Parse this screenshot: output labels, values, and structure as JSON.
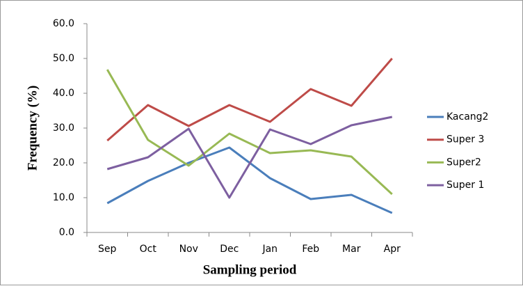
{
  "chart_data": {
    "type": "line",
    "xlabel": "Sampling period",
    "ylabel": "Frequency (%)",
    "categories": [
      "Sep",
      "Oct",
      "Nov",
      "Dec",
      "Jan",
      "Feb",
      "Mar",
      "Apr"
    ],
    "series": [
      {
        "name": "Kacang2",
        "color": "#4a7ebb",
        "values": [
          8.4,
          14.8,
          20,
          24.4,
          15.6,
          9.6,
          10.8,
          5.6
        ]
      },
      {
        "name": "Super 3",
        "color": "#be4b48",
        "values": [
          26.4,
          36.6,
          30.6,
          36.6,
          31.8,
          41.2,
          36.4,
          50
        ]
      },
      {
        "name": "Super2",
        "color": "#98b954",
        "values": [
          46.8,
          26.6,
          19.2,
          28.4,
          22.8,
          23.6,
          21.8,
          11
        ]
      },
      {
        "name": "Super 1",
        "color": "#7d5fa0",
        "values": [
          18.2,
          21.6,
          29.8,
          10,
          29.6,
          25.4,
          30.8,
          33.2
        ]
      }
    ],
    "ylim": [
      0,
      60
    ],
    "yticks": [
      {
        "value": 0,
        "label": "0.0"
      },
      {
        "value": 10,
        "label": "10.0"
      },
      {
        "value": 20,
        "label": "20.0"
      },
      {
        "value": 30,
        "label": "30.0"
      },
      {
        "value": 40,
        "label": "40.0"
      },
      {
        "value": 50,
        "label": "50.0"
      },
      {
        "value": 60,
        "label": "60.0"
      }
    ],
    "grid": false,
    "legend": "right"
  }
}
